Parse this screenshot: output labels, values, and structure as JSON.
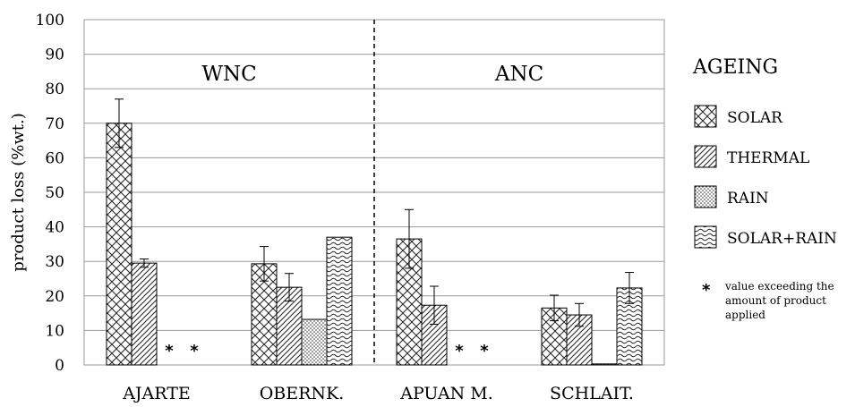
{
  "chart_data": {
    "type": "bar",
    "ylabel": "product loss (%wt.)",
    "ylim": [
      0,
      100
    ],
    "yticks": [
      0,
      10,
      20,
      30,
      40,
      50,
      60,
      70,
      80,
      90,
      100
    ],
    "grid": true,
    "categories": [
      "AJARTE",
      "OBERNK.",
      "APUAN M.",
      "SCHLAIT."
    ],
    "groups": [
      {
        "label": "WNC",
        "categories": [
          "AJARTE",
          "OBERNK."
        ]
      },
      {
        "label": "ANC",
        "categories": [
          "APUAN M.",
          "SCHLAIT."
        ]
      }
    ],
    "legend_title": "AGEING",
    "legend_position": "right",
    "series": [
      {
        "name": "SOLAR",
        "pattern": "crosshatch",
        "values": [
          70,
          29.3,
          36.5,
          16.5
        ],
        "errors": [
          7,
          5,
          8.5,
          3.7
        ]
      },
      {
        "name": "THERMAL",
        "pattern": "diagonal",
        "values": [
          29.5,
          22.5,
          17.3,
          14.5
        ],
        "errors": [
          1.2,
          4,
          5.5,
          3.3
        ]
      },
      {
        "name": "RAIN",
        "pattern": "dots",
        "values": [
          null,
          13.2,
          null,
          0.3
        ],
        "errors": [
          null,
          null,
          null,
          null
        ]
      },
      {
        "name": "SOLAR+RAIN",
        "pattern": "waves",
        "values": [
          null,
          37,
          null,
          22.3
        ],
        "errors": [
          null,
          null,
          null,
          4.5
        ]
      }
    ],
    "star_marker": "*",
    "star_categories": [
      "AJARTE",
      "APUAN M."
    ],
    "note": [
      "value exceeding the",
      "amount  of  product",
      "applied"
    ]
  }
}
